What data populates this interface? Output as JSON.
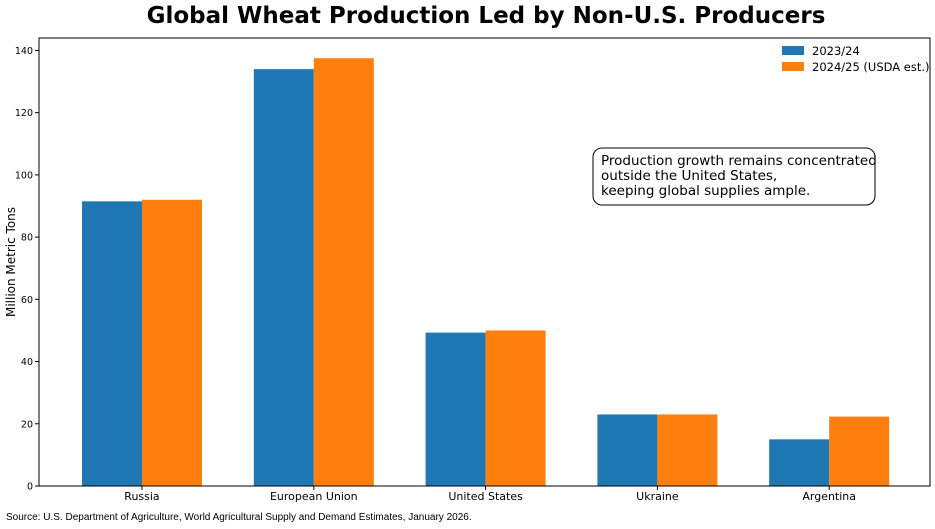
{
  "chart_data": {
    "type": "bar",
    "title": "Global Wheat Production Led by Non-U.S. Producers",
    "xlabel": "",
    "ylabel": "Million Metric Tons",
    "categories": [
      "Russia",
      "European Union",
      "United States",
      "Ukraine",
      "Argentina"
    ],
    "series": [
      {
        "name": "2023/24",
        "color": "#1f77b4",
        "values": [
          91.5,
          134.0,
          49.3,
          23.0,
          15.0
        ]
      },
      {
        "name": "2024/25 (USDA est.)",
        "color": "#ff7f0e",
        "values": [
          92.0,
          137.5,
          50.0,
          23.0,
          22.3
        ]
      }
    ],
    "ylim": [
      0,
      144
    ],
    "yticks": [
      0,
      20,
      40,
      60,
      80,
      100,
      120,
      140
    ],
    "grid": false,
    "legend_position": "top-right",
    "annotation": {
      "lines": [
        "Production growth remains concentrated",
        "outside the United States,",
        "keeping global supplies ample."
      ]
    }
  },
  "source": "Source: U.S. Department of Agriculture, World Agricultural Supply and Demand Estimates, January 2026."
}
